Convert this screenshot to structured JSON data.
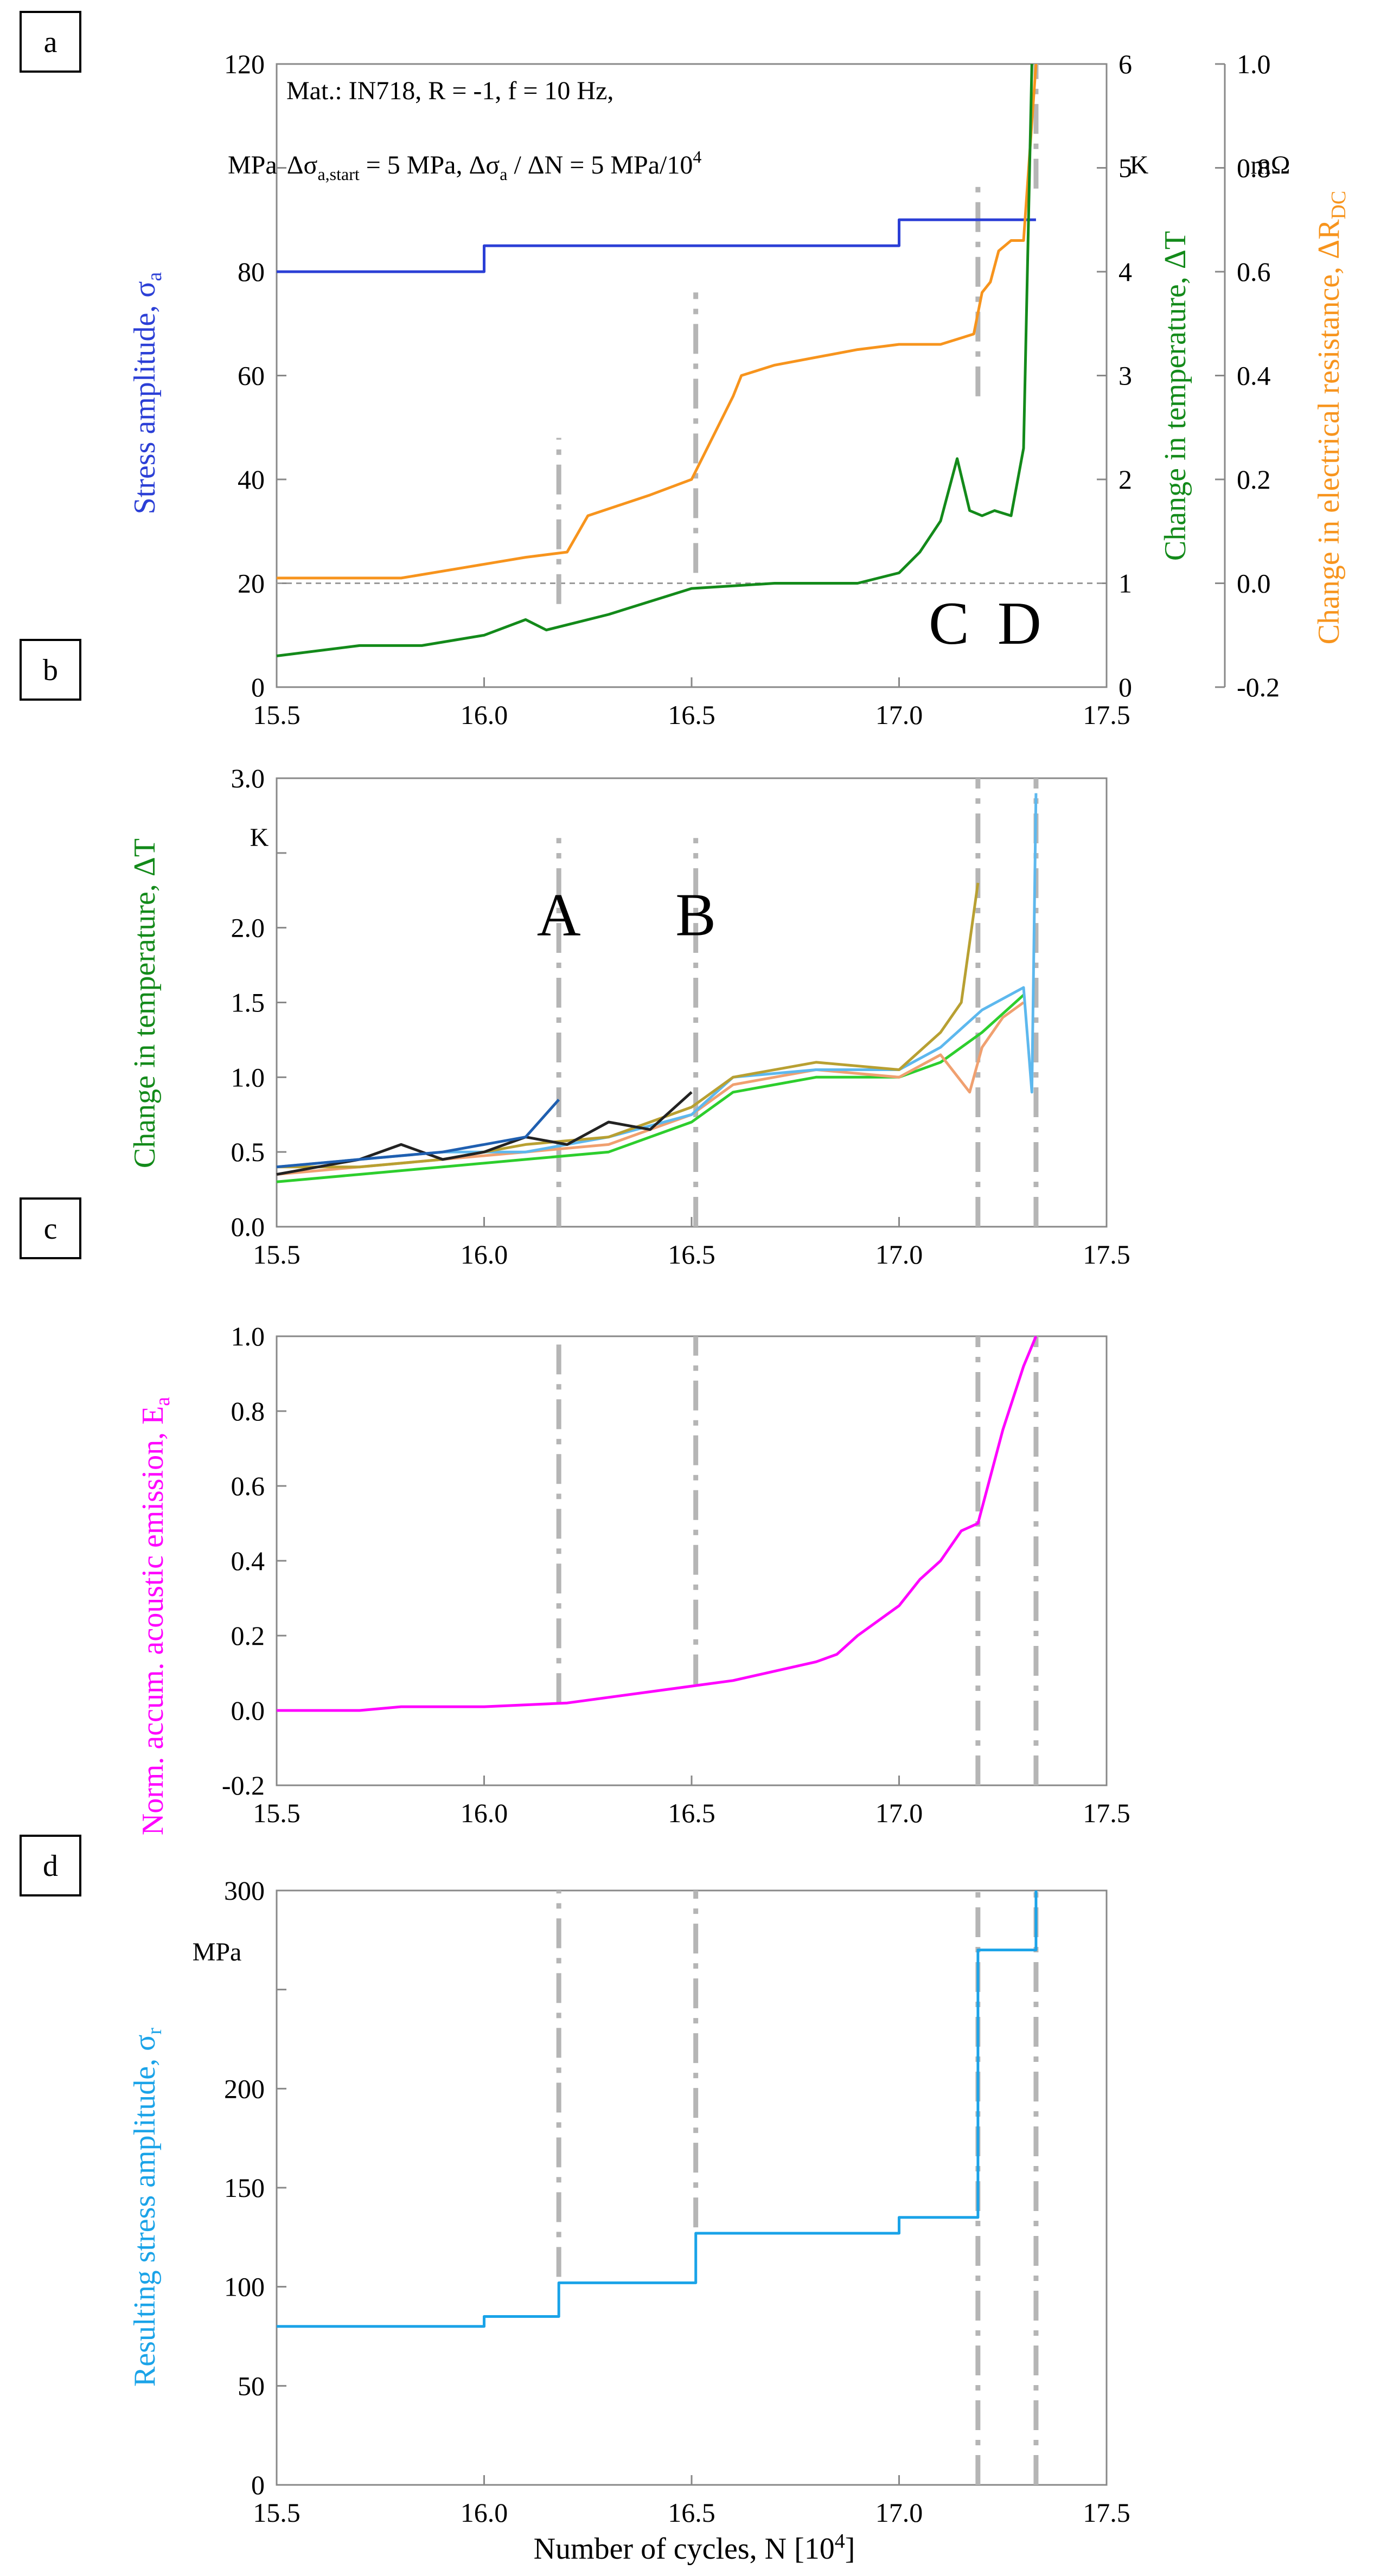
{
  "colors": {
    "blue": "#2b3fd6",
    "green": "#138a1a",
    "orange": "#f7941d",
    "magenta": "#ff00ff",
    "cyan": "#1aa3e8",
    "grid": "#999999",
    "marker": "#b5b5b5",
    "frame": "#888888",
    "text": "#000000"
  },
  "chart_data": [
    {
      "id": "a",
      "panel_label": "a",
      "type": "line",
      "annotation_lines": [
        "Mat.: IN718, R = -1, f = 10 Hz,",
        "Δσa,start = 5 MPa, Δσa / ΔN = 5 MPa/10⁴"
      ],
      "ann_mpa": "MPa",
      "ann_ds": "Δσ",
      "ann_a_start": "a,start",
      "ann_eq1": " = 5 MPa, Δσ",
      "ann_a": "a",
      "ann_eq2": " / ΔN = 5 MPa/10",
      "ann_exp": "4",
      "xlim": [
        15.5,
        17.5
      ],
      "x_ticks": [
        "15.5",
        "16.0",
        "16.5",
        "17.0",
        "17.5"
      ],
      "y_axes": {
        "left": {
          "label": "Stress amplitude, σa",
          "label_main": "Stress amplitude, σ",
          "label_sub": "a",
          "unit": "MPa",
          "ylim": [
            0,
            120
          ],
          "ticks": [
            "0",
            "20",
            "40",
            "60",
            "80",
            "",
            "120"
          ]
        },
        "right1": {
          "label": "Change in temperature, ΔT",
          "unit": "K",
          "ylim": [
            0,
            6
          ],
          "ticks": [
            "0",
            "1",
            "2",
            "3",
            "4",
            "5",
            "6"
          ]
        },
        "right2": {
          "label": "Change in electrical resistance, ΔRDC",
          "label_main": "Change in electrical resistance, ΔR",
          "label_sub": "DC",
          "unit": "mΩ",
          "ylim": [
            -0.2,
            1.0
          ],
          "ticks": [
            "-0.2",
            "0.0",
            "0.2",
            "0.4",
            "0.6",
            "0.8",
            "1.0"
          ]
        }
      },
      "reference_line": {
        "axis": "right1",
        "y": 1
      },
      "markers": [
        {
          "label": "",
          "x": 16.18,
          "y_range": [
            0.8,
            2.4
          ]
        },
        {
          "label": "",
          "x": 16.51,
          "y_range": [
            1.1,
            3.8
          ]
        },
        {
          "label": "C",
          "x": 17.19,
          "y_range": [
            2.8,
            4.9
          ],
          "label_x": 17.12
        },
        {
          "label": "D",
          "x": 17.33,
          "y_range": [
            4.8,
            6.0
          ],
          "label_x": 17.29
        }
      ],
      "series": [
        {
          "color": "blue",
          "axis": "left",
          "step": true,
          "x": [
            15.5,
            16.0,
            16.0,
            17.0,
            17.0,
            17.33
          ],
          "y": [
            80,
            80,
            85,
            85,
            90,
            90
          ]
        },
        {
          "color": "orange",
          "axis": "right2",
          "x": [
            15.5,
            15.8,
            15.95,
            16.1,
            16.2,
            16.25,
            16.4,
            16.5,
            16.55,
            16.6,
            16.62,
            16.7,
            16.9,
            17.0,
            17.1,
            17.18,
            17.2,
            17.22,
            17.24,
            17.27,
            17.3,
            17.33
          ],
          "y": [
            0.01,
            0.01,
            0.03,
            0.05,
            0.06,
            0.13,
            0.17,
            0.2,
            0.28,
            0.36,
            0.4,
            0.42,
            0.45,
            0.46,
            0.46,
            0.48,
            0.56,
            0.58,
            0.64,
            0.66,
            0.66,
            1.0
          ]
        },
        {
          "color": "green",
          "axis": "right1",
          "x": [
            15.5,
            15.7,
            15.85,
            16.0,
            16.1,
            16.15,
            16.3,
            16.5,
            16.7,
            16.9,
            17.0,
            17.05,
            17.1,
            17.14,
            17.17,
            17.2,
            17.23,
            17.27,
            17.3,
            17.32
          ],
          "y": [
            0.3,
            0.4,
            0.4,
            0.5,
            0.65,
            0.55,
            0.7,
            0.95,
            1.0,
            1.0,
            1.1,
            1.3,
            1.6,
            2.2,
            1.7,
            1.65,
            1.7,
            1.65,
            2.3,
            6.0
          ]
        }
      ]
    },
    {
      "id": "b",
      "panel_label": "b",
      "type": "line",
      "xlim": [
        15.5,
        17.5
      ],
      "x_ticks": [
        "15.5",
        "16.0",
        "16.5",
        "17.0",
        "17.5"
      ],
      "ylabel": "Change in temperature, ΔT",
      "yunit": "K",
      "ylim": [
        0,
        3
      ],
      "y_ticks": [
        "0.0",
        "0.5",
        "1.0",
        "1.5",
        "2.0",
        "",
        "3.0"
      ],
      "markers": [
        {
          "label": "A",
          "x": 16.18,
          "y_range": [
            0.0,
            2.6
          ]
        },
        {
          "label": "B",
          "x": 16.51,
          "y_range": [
            0.0,
            2.6
          ]
        },
        {
          "label": "",
          "x": 17.19,
          "y_range": [
            0.0,
            3.0
          ]
        },
        {
          "label": "",
          "x": 17.33,
          "y_range": [
            0.0,
            3.0
          ]
        }
      ],
      "series": [
        {
          "color": "#2dce2d",
          "x": [
            15.5,
            15.7,
            15.9,
            16.1,
            16.3,
            16.5,
            16.6,
            16.8,
            17.0,
            17.1,
            17.2,
            17.3
          ],
          "y": [
            0.3,
            0.35,
            0.4,
            0.45,
            0.5,
            0.7,
            0.9,
            1.0,
            1.0,
            1.1,
            1.3,
            1.55
          ]
        },
        {
          "color": "#f0a070",
          "x": [
            15.5,
            15.7,
            15.9,
            16.1,
            16.3,
            16.5,
            16.6,
            16.8,
            17.0,
            17.1,
            17.17,
            17.2,
            17.25,
            17.3
          ],
          "y": [
            0.35,
            0.4,
            0.45,
            0.5,
            0.55,
            0.75,
            0.95,
            1.05,
            1.0,
            1.15,
            0.9,
            1.2,
            1.4,
            1.5
          ]
        },
        {
          "color": "#5db8ee",
          "x": [
            15.5,
            15.7,
            15.9,
            16.1,
            16.3,
            16.5,
            16.6,
            16.8,
            17.0,
            17.1,
            17.2,
            17.3,
            17.32,
            17.33
          ],
          "y": [
            0.4,
            0.45,
            0.5,
            0.5,
            0.6,
            0.75,
            1.0,
            1.05,
            1.05,
            1.2,
            1.45,
            1.6,
            0.9,
            2.9
          ]
        },
        {
          "color": "#b8a032",
          "x": [
            15.5,
            15.7,
            15.9,
            16.1,
            16.3,
            16.5,
            16.6,
            16.8,
            17.0,
            17.1,
            17.15,
            17.19
          ],
          "y": [
            0.4,
            0.4,
            0.45,
            0.55,
            0.6,
            0.8,
            1.0,
            1.1,
            1.05,
            1.3,
            1.5,
            2.3
          ]
        },
        {
          "color": "#222222",
          "x": [
            15.5,
            15.7,
            15.8,
            15.9,
            16.0,
            16.1,
            16.2,
            16.3,
            16.4,
            16.5
          ],
          "y": [
            0.35,
            0.45,
            0.55,
            0.45,
            0.5,
            0.6,
            0.55,
            0.7,
            0.65,
            0.9
          ]
        },
        {
          "color": "#1f5fb0",
          "x": [
            15.5,
            15.7,
            15.9,
            16.0,
            16.1,
            16.18
          ],
          "y": [
            0.4,
            0.45,
            0.5,
            0.55,
            0.6,
            0.85
          ]
        }
      ]
    },
    {
      "id": "c",
      "panel_label": "c",
      "type": "line",
      "xlim": [
        15.5,
        17.5
      ],
      "x_ticks": [
        "15.5",
        "16.0",
        "16.5",
        "17.0",
        "17.5"
      ],
      "ylabel": "Norm. accum. acoustic emission, Ea",
      "ylabel_main": "Norm. accum. acoustic emission, E",
      "ylabel_sub": "a",
      "ylim": [
        -0.2,
        1.0
      ],
      "y_ticks": [
        "-0.2",
        "0.0",
        "0.2",
        "0.4",
        "0.6",
        "0.8",
        "1.0"
      ],
      "markers": [
        {
          "label": "",
          "x": 16.18,
          "y_range": [
            0.02,
            1.0
          ]
        },
        {
          "label": "",
          "x": 16.51,
          "y_range": [
            0.07,
            1.0
          ]
        },
        {
          "label": "",
          "x": 17.19,
          "y_range": [
            -0.2,
            1.0
          ]
        },
        {
          "label": "",
          "x": 17.33,
          "y_range": [
            -0.2,
            1.0
          ]
        }
      ],
      "series": [
        {
          "color": "magenta",
          "x": [
            15.5,
            15.7,
            15.8,
            16.0,
            16.2,
            16.4,
            16.6,
            16.8,
            16.85,
            16.9,
            17.0,
            17.05,
            17.1,
            17.15,
            17.19,
            17.25,
            17.3,
            17.33
          ],
          "y": [
            0.0,
            0.0,
            0.01,
            0.01,
            0.02,
            0.05,
            0.08,
            0.13,
            0.15,
            0.2,
            0.28,
            0.35,
            0.4,
            0.48,
            0.5,
            0.75,
            0.92,
            1.0
          ]
        }
      ]
    },
    {
      "id": "d",
      "panel_label": "d",
      "type": "line",
      "xlim": [
        15.5,
        17.5
      ],
      "xlabel": "Number of cycles, N [10⁴]",
      "xlabel_main": "Number of cycles, N [10",
      "xlabel_exp": "4",
      "xlabel_end": "]",
      "x_ticks": [
        "15.5",
        "16.0",
        "16.5",
        "17.0",
        "17.5"
      ],
      "ylabel": "Resulting stress amplitude, σr",
      "ylabel_main": "Resulting stress amplitude, σ",
      "ylabel_sub": "r",
      "yunit": "MPa",
      "ylim": [
        0,
        300
      ],
      "y_ticks": [
        "0",
        "50",
        "100",
        "150",
        "200",
        "",
        "300"
      ],
      "markers": [
        {
          "label": "",
          "x": 16.18,
          "y_range": [
            105,
            300
          ]
        },
        {
          "label": "",
          "x": 16.51,
          "y_range": [
            130,
            300
          ]
        },
        {
          "label": "",
          "x": 17.19,
          "y_range": [
            0,
            300
          ]
        },
        {
          "label": "",
          "x": 17.33,
          "y_range": [
            0,
            300
          ]
        }
      ],
      "series": [
        {
          "color": "cyan",
          "step": true,
          "x": [
            15.5,
            16.0,
            16.0,
            16.18,
            16.18,
            16.51,
            16.51,
            17.0,
            17.0,
            17.19,
            17.19,
            17.33,
            17.33
          ],
          "y": [
            80,
            80,
            85,
            85,
            102,
            102,
            127,
            127,
            135,
            135,
            270,
            270,
            300
          ]
        }
      ]
    }
  ]
}
